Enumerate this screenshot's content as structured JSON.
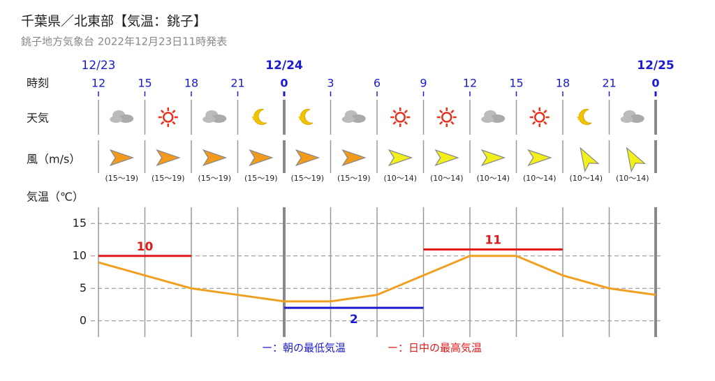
{
  "header": {
    "title": "千葉県／北東部【気温：銚子】",
    "subtitle": "銚子地方気象台 2022年12月23日11時発表"
  },
  "row_labels": {
    "time": "時刻",
    "weather": "天気",
    "wind": "風（m/s）",
    "temp": "気温（℃）"
  },
  "dates": [
    "12/23",
    null,
    null,
    null,
    "12/24",
    null,
    null,
    null,
    null,
    null,
    null,
    null,
    "12/25"
  ],
  "wind": [
    "(15～19)",
    "(15～19)",
    "(15～19)",
    "(15～19)",
    "(15～19)",
    "(15～19)",
    "(10～14)",
    "(10～14)",
    "(10～14)",
    "(10～14)",
    "(10～14)",
    "(10～14)"
  ],
  "chart_data": {
    "type": "line",
    "categories": [
      "12",
      "15",
      "18",
      "21",
      "0",
      "3",
      "6",
      "9",
      "12",
      "15",
      "18",
      "21",
      "0"
    ],
    "values": [
      9,
      7,
      5,
      4,
      3,
      3,
      4,
      7,
      10,
      10,
      7,
      5,
      4
    ],
    "color": "#f0a020",
    "series": [
      {
        "name": "ー：朝の最低気温",
        "color": "#1a1ad0",
        "values": [
          null,
          null,
          null,
          null,
          2,
          2,
          2,
          2,
          null,
          null,
          null,
          null,
          null
        ]
      },
      {
        "name": "ー：日中の最高気温",
        "color": "#e01a1a",
        "values": [
          10,
          10,
          10,
          null,
          null,
          null,
          null,
          11,
          11,
          11,
          11,
          null,
          null
        ]
      }
    ],
    "ylim": [
      -2.5,
      17.5
    ],
    "yticks": [
      0,
      5,
      10,
      15
    ],
    "grid": true
  }
}
